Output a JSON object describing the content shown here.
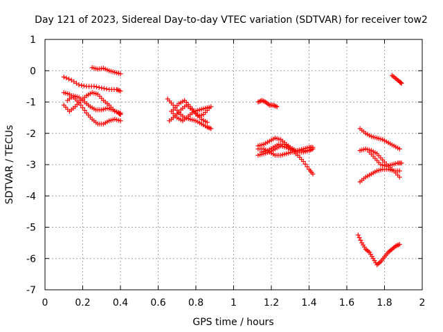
{
  "chart_data": {
    "type": "scatter",
    "title": "Day 121 of 2023, Sidereal Day-to-day VTEC variation (SDTVAR) for receiver tow2",
    "xlabel": "GPS time / hours",
    "ylabel": "SDTVAR / TECUs",
    "xlim": [
      0,
      2
    ],
    "ylim": [
      -7,
      1
    ],
    "xticks": [
      "0",
      "0.2",
      "0.4",
      "0.6",
      "0.8",
      "1",
      "1.2",
      "1.4",
      "1.6",
      "1.8",
      "2"
    ],
    "yticks": [
      "1",
      "0",
      "-1",
      "-2",
      "-3",
      "-4",
      "-5",
      "-6",
      "-7"
    ],
    "grid": true,
    "marker": "+",
    "color": "#ff0000",
    "traces": [
      {
        "x": [
          0.1,
          0.14,
          0.18,
          0.22,
          0.26,
          0.3,
          0.34,
          0.38,
          0.4
        ],
        "y": [
          -0.2,
          -0.3,
          -0.45,
          -0.5,
          -0.5,
          -0.55,
          -0.6,
          -0.6,
          -0.65
        ]
      },
      {
        "x": [
          0.1,
          0.13,
          0.16,
          0.19,
          0.22,
          0.25,
          0.28,
          0.31,
          0.34,
          0.37,
          0.4
        ],
        "y": [
          -1.1,
          -1.3,
          -1.15,
          -0.95,
          -0.8,
          -0.7,
          -0.75,
          -0.95,
          -1.1,
          -1.3,
          -1.35
        ]
      },
      {
        "x": [
          0.1,
          0.13,
          0.16,
          0.19,
          0.22,
          0.25,
          0.28,
          0.31,
          0.34,
          0.37,
          0.4
        ],
        "y": [
          -0.7,
          -0.75,
          -0.9,
          -1.1,
          -1.35,
          -1.55,
          -1.7,
          -1.7,
          -1.6,
          -1.55,
          -1.6
        ]
      },
      {
        "x": [
          0.12,
          0.15,
          0.18,
          0.21,
          0.24,
          0.27,
          0.3,
          0.33,
          0.36,
          0.39,
          0.4
        ],
        "y": [
          -0.95,
          -0.8,
          -0.85,
          -1.0,
          -1.15,
          -1.25,
          -1.25,
          -1.2,
          -1.25,
          -1.35,
          -1.4
        ]
      },
      {
        "x": [
          0.25,
          0.28,
          0.31,
          0.34,
          0.37,
          0.4
        ],
        "y": [
          0.1,
          0.05,
          0.08,
          0.0,
          -0.05,
          -0.1
        ]
      },
      {
        "x": [
          0.65,
          0.68,
          0.71,
          0.74,
          0.77,
          0.8,
          0.83,
          0.86,
          0.88
        ],
        "y": [
          -0.9,
          -1.1,
          -1.35,
          -1.5,
          -1.55,
          -1.6,
          -1.7,
          -1.8,
          -1.85
        ]
      },
      {
        "x": [
          0.66,
          0.69,
          0.72,
          0.75,
          0.78,
          0.81,
          0.84,
          0.87
        ],
        "y": [
          -1.6,
          -1.45,
          -1.25,
          -1.1,
          -1.25,
          -1.45,
          -1.4,
          -1.2
        ]
      },
      {
        "x": [
          0.67,
          0.7,
          0.73,
          0.76,
          0.79,
          0.82,
          0.85,
          0.88
        ],
        "y": [
          -1.3,
          -1.5,
          -1.6,
          -1.45,
          -1.3,
          -1.25,
          -1.2,
          -1.15
        ]
      },
      {
        "x": [
          0.68,
          0.71,
          0.74,
          0.77,
          0.8,
          0.83,
          0.86
        ],
        "y": [
          -1.25,
          -1.05,
          -0.95,
          -1.15,
          -1.35,
          -1.55,
          -1.65
        ]
      },
      {
        "x": [
          1.13,
          1.15,
          1.17,
          1.19,
          1.21,
          1.23
        ],
        "y": [
          -1.0,
          -0.95,
          -1.0,
          -1.1,
          -1.1,
          -1.15
        ]
      },
      {
        "x": [
          1.13,
          1.16,
          1.19,
          1.22,
          1.25,
          1.28,
          1.31,
          1.34,
          1.37,
          1.4,
          1.42
        ],
        "y": [
          -2.7,
          -2.65,
          -2.6,
          -2.5,
          -2.4,
          -2.45,
          -2.55,
          -2.7,
          -2.9,
          -3.15,
          -3.3
        ]
      },
      {
        "x": [
          1.13,
          1.16,
          1.19,
          1.22,
          1.25,
          1.28,
          1.31,
          1.34,
          1.37,
          1.4,
          1.42
        ],
        "y": [
          -2.4,
          -2.35,
          -2.25,
          -2.15,
          -2.2,
          -2.35,
          -2.5,
          -2.6,
          -2.6,
          -2.55,
          -2.5
        ]
      },
      {
        "x": [
          1.13,
          1.16,
          1.19,
          1.22,
          1.25,
          1.28,
          1.31,
          1.34,
          1.37,
          1.4,
          1.42
        ],
        "y": [
          -2.5,
          -2.5,
          -2.6,
          -2.7,
          -2.7,
          -2.65,
          -2.6,
          -2.55,
          -2.5,
          -2.45,
          -2.45
        ]
      },
      {
        "x": [
          1.15,
          1.18,
          1.21,
          1.24,
          1.27,
          1.3,
          1.33,
          1.36,
          1.39
        ],
        "y": [
          -2.6,
          -2.55,
          -2.45,
          -2.35,
          -2.35,
          -2.45,
          -2.55,
          -2.55,
          -2.55
        ]
      },
      {
        "x": [
          1.67,
          1.7,
          1.73,
          1.76,
          1.79,
          1.82,
          1.85,
          1.88
        ],
        "y": [
          -1.85,
          -2.0,
          -2.1,
          -2.15,
          -2.2,
          -2.3,
          -2.4,
          -2.5
        ]
      },
      {
        "x": [
          1.67,
          1.7,
          1.73,
          1.76,
          1.79,
          1.82,
          1.85,
          1.88
        ],
        "y": [
          -2.55,
          -2.5,
          -2.55,
          -2.65,
          -2.85,
          -3.05,
          -3.2,
          -3.4
        ]
      },
      {
        "x": [
          1.67,
          1.7,
          1.73,
          1.76,
          1.79,
          1.82,
          1.85,
          1.88
        ],
        "y": [
          -3.55,
          -3.4,
          -3.3,
          -3.2,
          -3.15,
          -3.15,
          -3.2,
          -3.2
        ]
      },
      {
        "x": [
          1.72,
          1.75,
          1.78,
          1.81,
          1.84,
          1.87,
          1.89
        ],
        "y": [
          -2.6,
          -2.8,
          -3.0,
          -3.05,
          -3.0,
          -2.95,
          -2.95
        ]
      },
      {
        "x": [
          1.84,
          1.86,
          1.88,
          1.89
        ],
        "y": [
          -0.15,
          -0.25,
          -0.35,
          -0.4
        ]
      },
      {
        "x": [
          1.66,
          1.68,
          1.7,
          1.72,
          1.74,
          1.76,
          1.78,
          1.8,
          1.82,
          1.84,
          1.86,
          1.88
        ],
        "y": [
          -5.25,
          -5.5,
          -5.7,
          -5.8,
          -6.0,
          -6.2,
          -6.1,
          -5.95,
          -5.8,
          -5.7,
          -5.6,
          -5.55
        ]
      }
    ]
  }
}
